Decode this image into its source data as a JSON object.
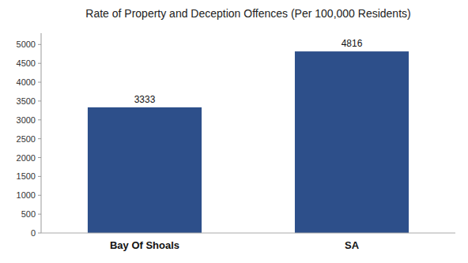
{
  "chart_data": {
    "type": "bar",
    "title": "Rate of Property and Deception Offences (Per 100,000 Residents)",
    "categories": [
      "Bay Of Shoals",
      "SA"
    ],
    "values": [
      3333,
      4816
    ],
    "color": "#2d4f8a",
    "ylim": [
      0,
      5300
    ],
    "yticks": [
      0,
      500,
      1000,
      1500,
      2000,
      2500,
      3000,
      3500,
      4000,
      4500,
      5000
    ],
    "grid": false,
    "data_labels": true
  }
}
